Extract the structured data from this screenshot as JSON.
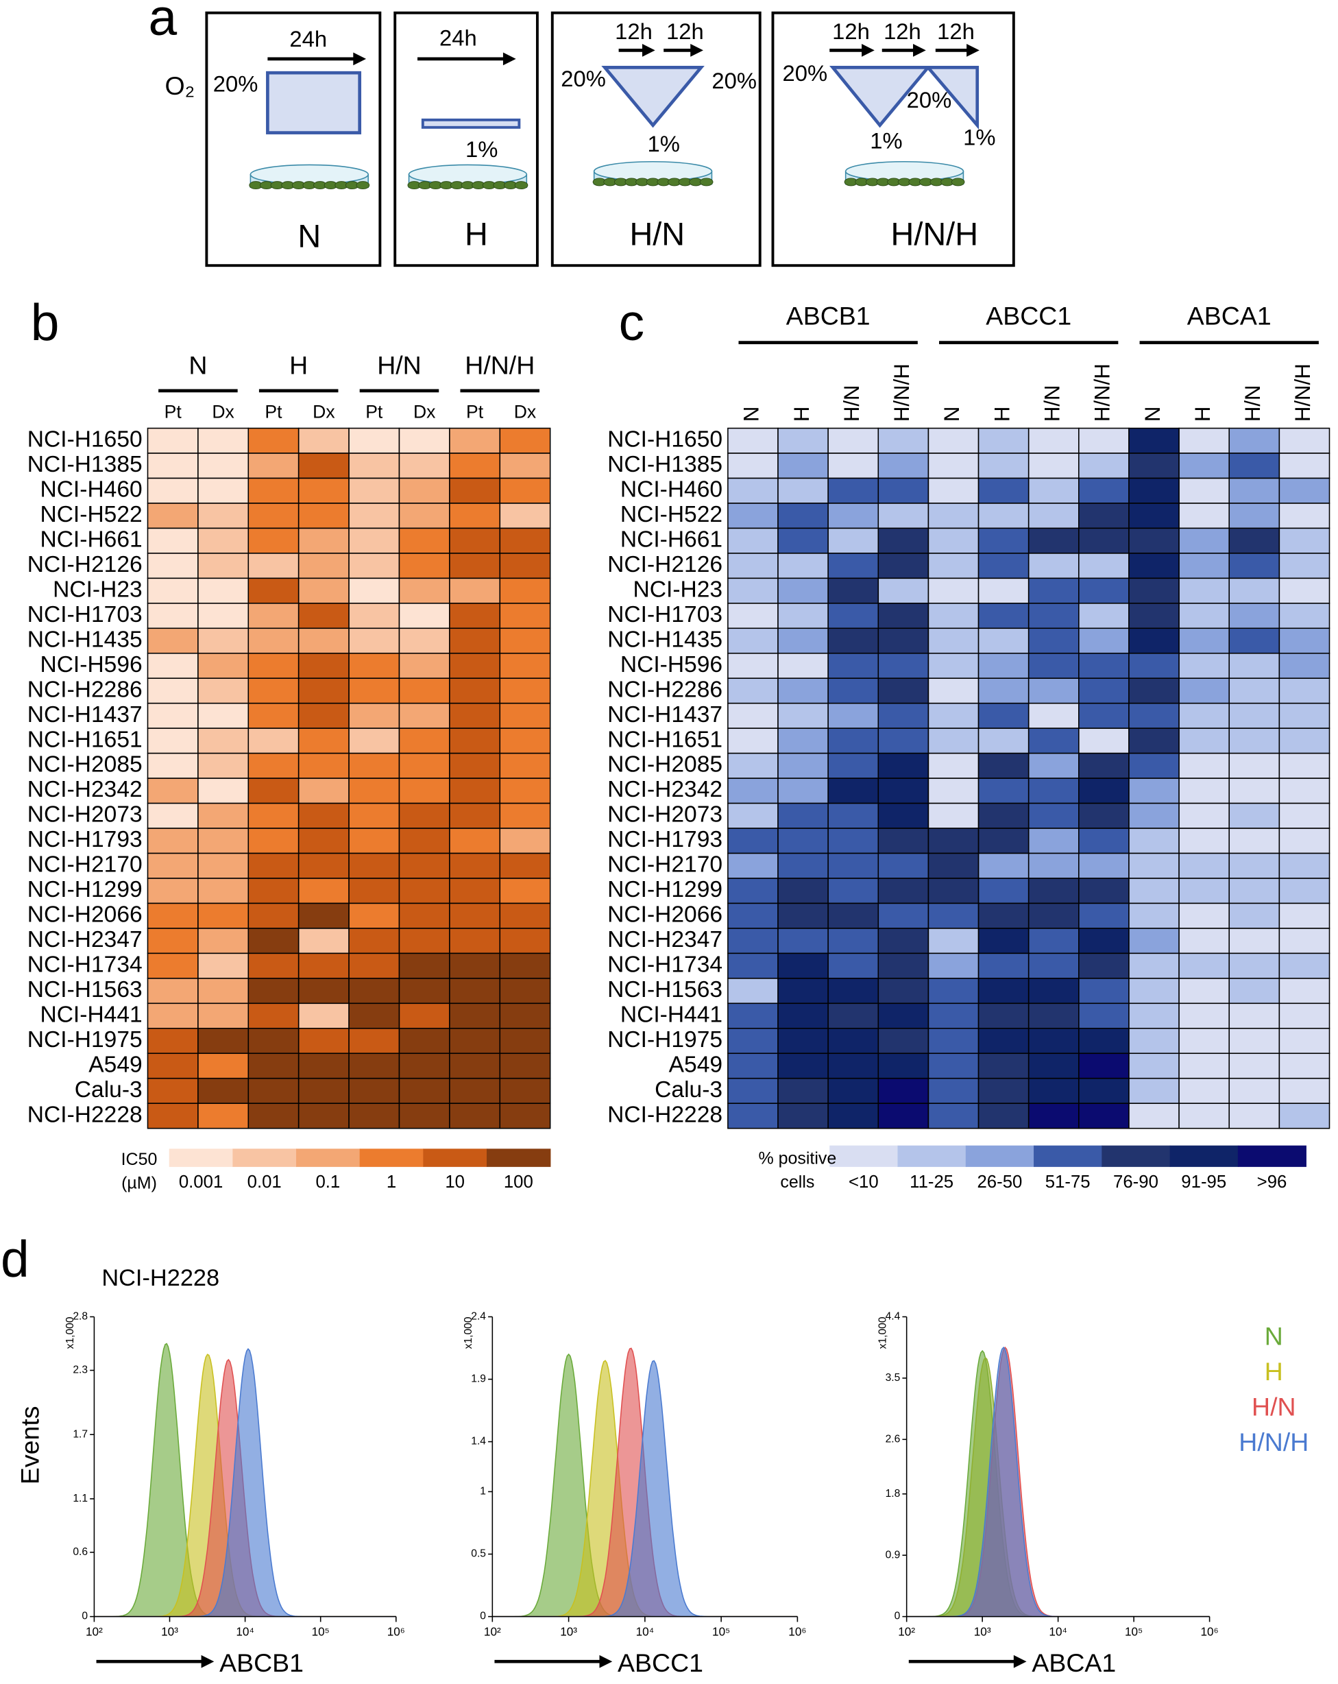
{
  "panel_labels": [
    "a",
    "b",
    "c",
    "d"
  ],
  "panel_a": {
    "o2_label": "O₂",
    "conditions": [
      {
        "name": "N",
        "times": [
          "24h"
        ],
        "levels": [
          "20%"
        ]
      },
      {
        "name": "H",
        "times": [
          "24h"
        ],
        "levels": [
          "1%"
        ]
      },
      {
        "name": "H/N",
        "times": [
          "12h",
          "12h"
        ],
        "levels": [
          "20%",
          "1%",
          "20%"
        ]
      },
      {
        "name": "H/N/H",
        "times": [
          "12h",
          "12h",
          "12h"
        ],
        "levels": [
          "20%",
          "1%",
          "20%",
          "1%"
        ]
      }
    ]
  },
  "panel_d": {
    "title": "NCI-H2228",
    "y_label": "Events"
  },
  "chart_data": [
    {
      "type": "heatmap",
      "group_labels": [
        "N",
        "H",
        "H/N",
        "H/N/H"
      ],
      "column_labels": [
        "Pt",
        "Dx",
        "Pt",
        "Dx",
        "Pt",
        "Dx",
        "Pt",
        "Dx"
      ],
      "row_labels": [
        "NCI-H1650",
        "NCI-H1385",
        "NCI-H460",
        "NCI-H522",
        "NCI-H661",
        "NCI-H2126",
        "NCI-H23",
        "NCI-H1703",
        "NCI-H1435",
        "NCI-H596",
        "NCI-H2286",
        "NCI-H1437",
        "NCI-H1651",
        "NCI-H2085",
        "NCI-H2342",
        "NCI-H2073",
        "NCI-H1793",
        "NCI-H2170",
        "NCI-H1299",
        "NCI-H2066",
        "NCI-H2347",
        "NCI-H1734",
        "NCI-H1563",
        "NCI-H441",
        "NCI-H1975",
        "A549",
        "Calu-3",
        "NCI-H2228"
      ],
      "values": [
        [
          0.001,
          0.001,
          1,
          0.01,
          0.001,
          0.001,
          0.1,
          1
        ],
        [
          0.001,
          0.001,
          0.1,
          10,
          0.01,
          0.01,
          1,
          0.1
        ],
        [
          0.001,
          0.001,
          1,
          1,
          0.01,
          0.1,
          10,
          1
        ],
        [
          0.1,
          0.01,
          1,
          1,
          0.01,
          0.1,
          1,
          0.01
        ],
        [
          0.001,
          0.01,
          1,
          0.1,
          0.01,
          1,
          10,
          10
        ],
        [
          0.001,
          0.01,
          0.01,
          0.1,
          0.01,
          1,
          10,
          10
        ],
        [
          0.001,
          0.001,
          10,
          0.1,
          0.001,
          0.1,
          0.1,
          1
        ],
        [
          0.001,
          0.001,
          0.1,
          10,
          0.01,
          0.001,
          10,
          1
        ],
        [
          0.1,
          0.01,
          0.1,
          0.1,
          0.01,
          0.01,
          10,
          1
        ],
        [
          0.001,
          0.1,
          1,
          10,
          1,
          0.1,
          10,
          1
        ],
        [
          0.001,
          0.01,
          1,
          10,
          1,
          1,
          10,
          1
        ],
        [
          0.001,
          0.001,
          1,
          10,
          0.1,
          0.1,
          10,
          1
        ],
        [
          0.001,
          0.01,
          0.01,
          1,
          0.01,
          1,
          10,
          1
        ],
        [
          0.001,
          0.01,
          1,
          1,
          1,
          1,
          10,
          1
        ],
        [
          0.1,
          0.001,
          10,
          0.1,
          1,
          1,
          10,
          1
        ],
        [
          0.001,
          0.1,
          1,
          10,
          1,
          10,
          10,
          1
        ],
        [
          0.1,
          0.1,
          1,
          10,
          1,
          10,
          1,
          0.1
        ],
        [
          0.1,
          0.1,
          10,
          10,
          10,
          10,
          10,
          10
        ],
        [
          0.1,
          0.1,
          10,
          1,
          10,
          10,
          10,
          1
        ],
        [
          1,
          1,
          10,
          100,
          1,
          10,
          10,
          10
        ],
        [
          1,
          0.1,
          100,
          0.01,
          10,
          10,
          10,
          10
        ],
        [
          1,
          0.01,
          10,
          10,
          10,
          100,
          100,
          100
        ],
        [
          0.1,
          0.1,
          100,
          100,
          100,
          100,
          100,
          100
        ],
        [
          0.1,
          0.1,
          10,
          0.01,
          100,
          10,
          100,
          100
        ],
        [
          10,
          100,
          100,
          10,
          10,
          100,
          100,
          100
        ],
        [
          10,
          1,
          100,
          100,
          100,
          100,
          100,
          100
        ],
        [
          10,
          100,
          100,
          100,
          100,
          100,
          100,
          100
        ],
        [
          10,
          1,
          100,
          100,
          100,
          100,
          100,
          100
        ]
      ],
      "legend_title": [
        "IC50",
        "(µM)"
      ],
      "legend_values": [
        0.001,
        0.01,
        0.1,
        1,
        10,
        100
      ],
      "colors": [
        "#fde3d3",
        "#f8c4a3",
        "#f3a774",
        "#ec7c2e",
        "#c95a15",
        "#863d10"
      ]
    },
    {
      "type": "heatmap",
      "group_labels": [
        "ABCB1",
        "ABCC1",
        "ABCA1"
      ],
      "column_labels": [
        "N",
        "H",
        "H/N",
        "H/N/H",
        "N",
        "H",
        "H/N",
        "H/N/H",
        "N",
        "H",
        "H/N",
        "H/N/H"
      ],
      "row_labels": [
        "NCI-H1650",
        "NCI-H1385",
        "NCI-H460",
        "NCI-H522",
        "NCI-H661",
        "NCI-H2126",
        "NCI-H23",
        "NCI-H1703",
        "NCI-H1435",
        "NCI-H596",
        "NCI-H2286",
        "NCI-H1437",
        "NCI-H1651",
        "NCI-H2085",
        "NCI-H2342",
        "NCI-H2073",
        "NCI-H1793",
        "NCI-H2170",
        "NCI-H1299",
        "NCI-H2066",
        "NCI-H2347",
        "NCI-H1734",
        "NCI-H1563",
        "NCI-H441",
        "NCI-H1975",
        "A549",
        "Calu-3",
        "NCI-H2228"
      ],
      "values": [
        [
          0,
          1,
          0,
          1,
          0,
          1,
          0,
          0,
          5,
          0,
          2,
          0
        ],
        [
          0,
          2,
          0,
          2,
          0,
          1,
          0,
          1,
          4,
          2,
          3,
          0
        ],
        [
          1,
          1,
          3,
          3,
          0,
          3,
          1,
          3,
          5,
          0,
          2,
          2
        ],
        [
          2,
          3,
          2,
          1,
          1,
          1,
          1,
          4,
          5,
          0,
          2,
          0
        ],
        [
          1,
          3,
          1,
          4,
          1,
          3,
          4,
          4,
          4,
          2,
          4,
          1
        ],
        [
          1,
          1,
          3,
          4,
          1,
          3,
          1,
          1,
          5,
          2,
          3,
          1
        ],
        [
          1,
          2,
          4,
          1,
          0,
          0,
          3,
          3,
          4,
          1,
          1,
          0
        ],
        [
          0,
          1,
          3,
          4,
          1,
          3,
          3,
          1,
          4,
          1,
          2,
          1
        ],
        [
          1,
          2,
          4,
          4,
          1,
          1,
          3,
          2,
          5,
          2,
          3,
          2
        ],
        [
          0,
          0,
          3,
          3,
          1,
          2,
          3,
          3,
          3,
          1,
          1,
          2
        ],
        [
          1,
          2,
          3,
          4,
          0,
          2,
          2,
          3,
          4,
          2,
          1,
          1
        ],
        [
          0,
          1,
          2,
          3,
          1,
          3,
          0,
          3,
          3,
          1,
          1,
          1
        ],
        [
          0,
          2,
          3,
          3,
          1,
          1,
          3,
          0,
          4,
          1,
          1,
          1
        ],
        [
          1,
          2,
          3,
          5,
          0,
          4,
          2,
          4,
          3,
          0,
          0,
          0
        ],
        [
          2,
          2,
          5,
          5,
          0,
          3,
          3,
          5,
          2,
          0,
          0,
          0
        ],
        [
          1,
          3,
          3,
          5,
          0,
          4,
          3,
          4,
          2,
          0,
          1,
          0
        ],
        [
          3,
          3,
          3,
          4,
          4,
          4,
          2,
          3,
          1,
          0,
          0,
          0
        ],
        [
          2,
          3,
          3,
          3,
          4,
          2,
          2,
          2,
          1,
          1,
          1,
          1
        ],
        [
          3,
          4,
          3,
          4,
          4,
          3,
          4,
          4,
          1,
          1,
          1,
          1
        ],
        [
          3,
          4,
          4,
          3,
          3,
          4,
          4,
          3,
          1,
          0,
          1,
          0
        ],
        [
          3,
          3,
          3,
          4,
          1,
          5,
          3,
          5,
          2,
          0,
          0,
          0
        ],
        [
          3,
          5,
          3,
          4,
          2,
          3,
          3,
          4,
          1,
          1,
          1,
          1
        ],
        [
          1,
          5,
          5,
          4,
          3,
          5,
          5,
          3,
          1,
          0,
          1,
          0
        ],
        [
          3,
          5,
          4,
          5,
          3,
          4,
          4,
          3,
          1,
          0,
          0,
          0
        ],
        [
          3,
          5,
          5,
          4,
          3,
          5,
          5,
          5,
          1,
          0,
          0,
          0
        ],
        [
          3,
          5,
          5,
          5,
          3,
          4,
          5,
          6,
          1,
          0,
          0,
          0
        ],
        [
          3,
          4,
          5,
          6,
          3,
          4,
          5,
          5,
          1,
          0,
          0,
          0
        ],
        [
          3,
          4,
          5,
          6,
          3,
          4,
          6,
          6,
          0,
          0,
          0,
          1
        ]
      ],
      "legend_title": [
        "% positive",
        "cells"
      ],
      "legend_labels": [
        "<10",
        "11-25",
        "26-50",
        "51-75",
        "76-90",
        "91-95",
        ">96"
      ],
      "colors": [
        "#d9def2",
        "#b4c4ea",
        "#8aa3dc",
        "#3a5aa8",
        "#22346e",
        "#0f2468",
        "#0b0b70"
      ]
    },
    {
      "type": "density",
      "x_label": "ABCB1",
      "y_unit": "x1,000",
      "log_x": true,
      "xlim": [
        100,
        1000000
      ],
      "xticks": [
        {
          "value": 100,
          "label": "10²"
        },
        {
          "value": 1000,
          "label": "10³"
        },
        {
          "value": 10000,
          "label": "10⁴"
        },
        {
          "value": 100000,
          "label": "10⁵"
        },
        {
          "value": 1000000,
          "label": "10⁶"
        }
      ],
      "ylim": [
        0,
        2.8
      ],
      "yticks": [
        0,
        0.6,
        1.1,
        1.7,
        2.3,
        2.8
      ],
      "series": [
        {
          "name": "N",
          "color": "#6aaa3a",
          "x": 900,
          "y": 2.55
        },
        {
          "name": "H",
          "color": "#c8c020",
          "x": 3200,
          "y": 2.45
        },
        {
          "name": "H/N",
          "color": "#e05050",
          "x": 6000,
          "y": 2.4
        },
        {
          "name": "H/N/H",
          "color": "#4a7ad0",
          "x": 11000,
          "y": 2.5
        }
      ]
    },
    {
      "type": "density",
      "x_label": "ABCC1",
      "y_unit": "x1,000",
      "log_x": true,
      "xlim": [
        100,
        1000000
      ],
      "xticks": [
        {
          "value": 100,
          "label": "10²"
        },
        {
          "value": 1000,
          "label": "10³"
        },
        {
          "value": 10000,
          "label": "10⁴"
        },
        {
          "value": 100000,
          "label": "10⁵"
        },
        {
          "value": 1000000,
          "label": "10⁶"
        }
      ],
      "ylim": [
        0,
        2.4
      ],
      "yticks": [
        0,
        0.5,
        1.0,
        1.4,
        1.9,
        2.4
      ],
      "series": [
        {
          "name": "N",
          "color": "#6aaa3a",
          "x": 1000,
          "y": 2.1
        },
        {
          "name": "H",
          "color": "#c8c020",
          "x": 3000,
          "y": 2.05
        },
        {
          "name": "H/N",
          "color": "#e05050",
          "x": 6500,
          "y": 2.15
        },
        {
          "name": "H/N/H",
          "color": "#4a7ad0",
          "x": 13000,
          "y": 2.05
        }
      ]
    },
    {
      "type": "density",
      "x_label": "ABCA1",
      "y_unit": "x1,000",
      "log_x": true,
      "xlim": [
        100,
        1000000
      ],
      "xticks": [
        {
          "value": 100,
          "label": "10²"
        },
        {
          "value": 1000,
          "label": "10³"
        },
        {
          "value": 10000,
          "label": "10⁴"
        },
        {
          "value": 100000,
          "label": "10⁵"
        },
        {
          "value": 1000000,
          "label": "10⁶"
        }
      ],
      "ylim": [
        0,
        4.4
      ],
      "yticks": [
        0,
        0.9,
        1.8,
        2.6,
        3.5,
        4.4
      ],
      "series": [
        {
          "name": "N",
          "color": "#6aaa3a",
          "x": 1000,
          "y": 3.9
        },
        {
          "name": "H",
          "color": "#8fb030",
          "x": 1100,
          "y": 3.8
        },
        {
          "name": "H/N",
          "color": "#e05050",
          "x": 2000,
          "y": 3.95
        },
        {
          "name": "H/N/H",
          "color": "#4a7ad0",
          "x": 1900,
          "y": 3.95
        }
      ]
    }
  ]
}
